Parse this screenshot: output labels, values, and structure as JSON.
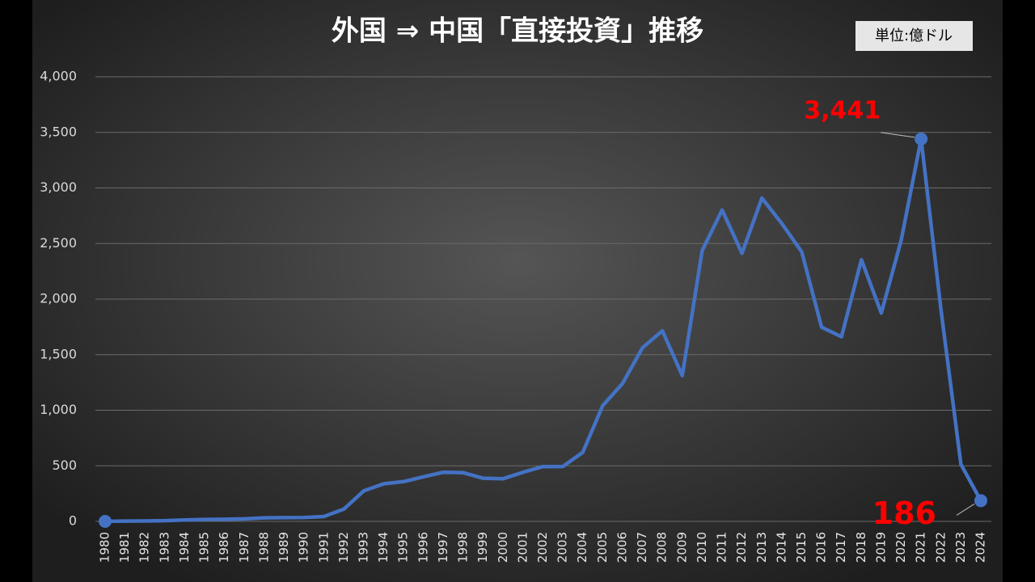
{
  "chart_data": {
    "type": "line",
    "title": "外国 ⇒ 中国「直接投資」推移",
    "unit_note": "単位:億ドル",
    "categories": [
      "1980",
      "1981",
      "1982",
      "1983",
      "1984",
      "1985",
      "1986",
      "1987",
      "1988",
      "1989",
      "1990",
      "1991",
      "1992",
      "1993",
      "1994",
      "1995",
      "1996",
      "1997",
      "1998",
      "1999",
      "2000",
      "2001",
      "2002",
      "2003",
      "2004",
      "2005",
      "2006",
      "2007",
      "2008",
      "2009",
      "2010",
      "2011",
      "2012",
      "2013",
      "2014",
      "2015",
      "2016",
      "2017",
      "2018",
      "2019",
      "2020",
      "2021",
      "2022",
      "2023",
      "2024"
    ],
    "series": [
      {
        "name": "直接投資",
        "color": "#4472c4",
        "values": [
          0,
          3,
          4,
          6,
          13,
          17,
          19,
          23,
          32,
          34,
          35,
          44,
          111,
          275,
          338,
          358,
          401,
          442,
          438,
          388,
          384,
          442,
          493,
          494,
          621,
          1041,
          1241,
          1562,
          1715,
          1311,
          2437,
          2801,
          2412,
          2909,
          2680,
          2425,
          1747,
          1661,
          2354,
          1874,
          2531,
          3441,
          1901,
          513,
          186
        ],
        "value_labels": [
          null,
          null,
          null,
          null,
          null,
          null,
          null,
          null,
          null,
          null,
          null,
          null,
          null,
          null,
          null,
          null,
          null,
          null,
          null,
          null,
          null,
          null,
          null,
          null,
          null,
          null,
          null,
          null,
          null,
          null,
          null,
          null,
          null,
          null,
          null,
          null,
          null,
          null,
          null,
          null,
          null,
          "3,441",
          null,
          null,
          "186"
        ]
      }
    ],
    "markers": [
      0,
      41,
      44
    ],
    "ylim": [
      0,
      4000
    ],
    "yticks": [
      0,
      500,
      {
        "value": 1000,
        "label": "1,000"
      },
      {
        "value": 1500,
        "label": "1,500"
      },
      {
        "value": 2000,
        "label": "2,000"
      },
      {
        "value": 2500,
        "label": "2,500"
      },
      {
        "value": 3000,
        "label": "3,000"
      },
      {
        "value": 3500,
        "label": "3,500"
      },
      {
        "value": 4000,
        "label": "4,000"
      }
    ],
    "grid": true,
    "label_color": "#ff0000"
  }
}
